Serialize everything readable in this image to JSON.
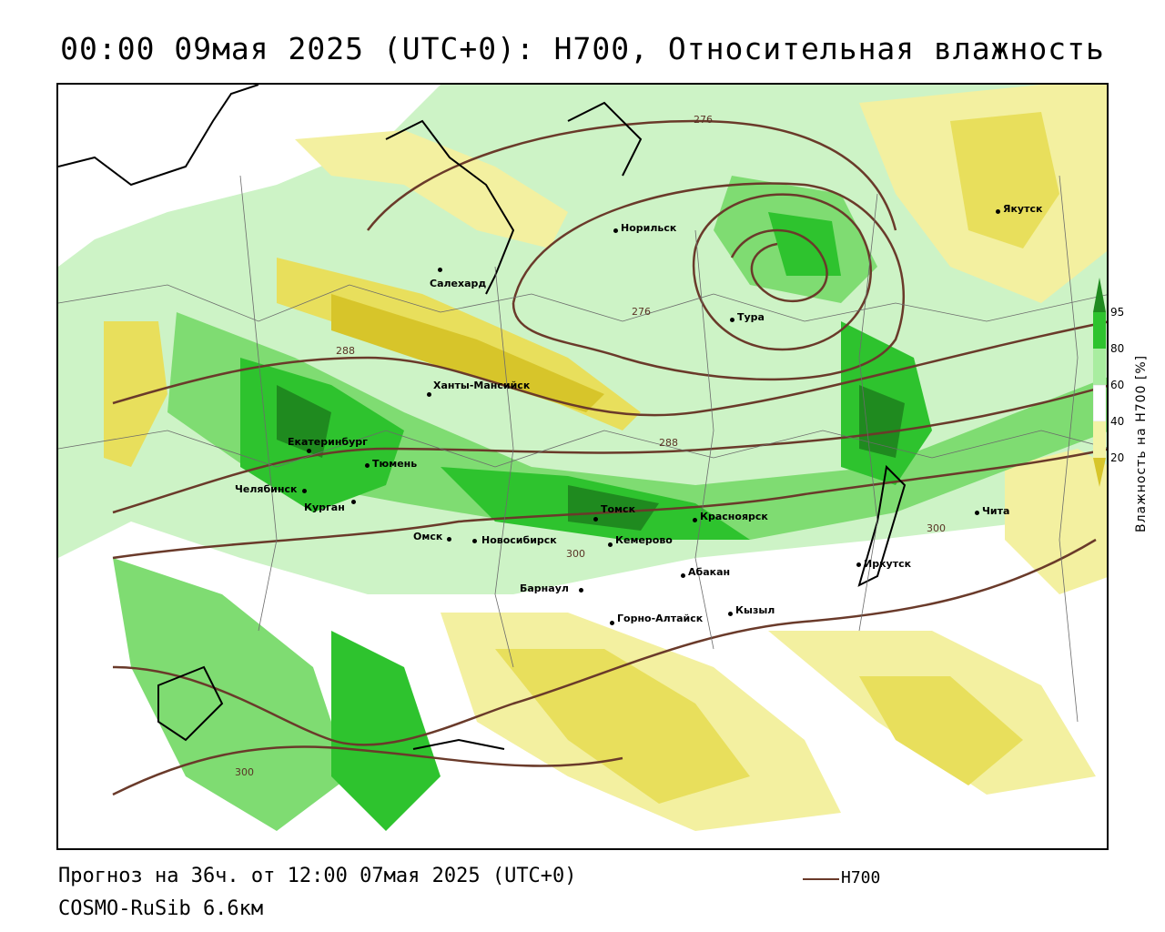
{
  "header": {
    "title": "00:00 09мая 2025 (UTC+0): H700, Относительная влажность"
  },
  "footer": {
    "forecast": "Прогноз на 36ч. от 12:00 07мая 2025 (UTC+0)",
    "model": "COSMO-RuSib 6.6км"
  },
  "legend": {
    "line_label": "H700",
    "line_color": "#6a3a2a"
  },
  "colorbar": {
    "title": "Влажность на H700 [%]",
    "ticks": [
      "95",
      "80",
      "60",
      "40",
      "20"
    ],
    "colors": [
      "#1f8a1f",
      "#2ec32e",
      "#a9eda0",
      "#ffffff",
      "#f3f3a6",
      "#d7c52a"
    ]
  },
  "isolines": {
    "labels": [
      "276",
      "276",
      "288",
      "288",
      "300",
      "300",
      "300"
    ]
  },
  "cities": [
    {
      "name": "Якутск"
    },
    {
      "name": "Норильск"
    },
    {
      "name": "Салехард"
    },
    {
      "name": "Тура"
    },
    {
      "name": "Ханты-Мансийск"
    },
    {
      "name": "Екатеринбург"
    },
    {
      "name": "Тюмень"
    },
    {
      "name": "Челябинск"
    },
    {
      "name": "Курган"
    },
    {
      "name": "Омск"
    },
    {
      "name": "Новосибирск"
    },
    {
      "name": "Томск"
    },
    {
      "name": "Кемерово"
    },
    {
      "name": "Красноярск"
    },
    {
      "name": "Абакан"
    },
    {
      "name": "Барнаул"
    },
    {
      "name": "Горно-Алтайск"
    },
    {
      "name": "Кызыл"
    },
    {
      "name": "Иркутск"
    },
    {
      "name": "Чита"
    }
  ]
}
